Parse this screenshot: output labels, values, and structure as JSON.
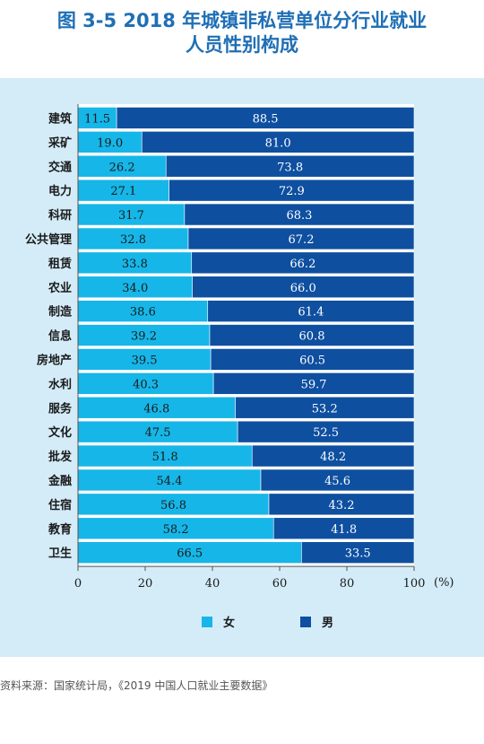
{
  "chart_data": {
    "type": "bar",
    "orientation": "horizontal",
    "stacked": true,
    "title": "图 3-5  2018 年城镇非私营单位分行业就业",
    "subtitle": "人员性别构成",
    "categories": [
      "建筑",
      "采矿",
      "交通",
      "电力",
      "科研",
      "公共管理",
      "租赁",
      "农业",
      "制造",
      "信息",
      "房地产",
      "水利",
      "服务",
      "文化",
      "批发",
      "金融",
      "住宿",
      "教育",
      "卫生"
    ],
    "series": [
      {
        "name": "女",
        "color": "#16b6e8",
        "values": [
          11.5,
          19.0,
          26.2,
          27.1,
          31.7,
          32.8,
          33.8,
          34.0,
          38.6,
          39.2,
          39.5,
          40.3,
          46.8,
          47.5,
          51.8,
          54.4,
          56.8,
          58.2,
          66.5
        ]
      },
      {
        "name": "男",
        "color": "#0e4fa0",
        "values": [
          88.5,
          81.0,
          73.8,
          72.9,
          68.3,
          67.2,
          66.2,
          66.0,
          61.4,
          60.8,
          60.5,
          59.7,
          53.2,
          52.5,
          48.2,
          45.6,
          43.2,
          41.8,
          33.5
        ]
      }
    ],
    "xlim": [
      0,
      100
    ],
    "xticks": [
      0,
      20,
      40,
      60,
      80,
      100
    ],
    "xunit": "(%)",
    "legend_position": "bottom"
  },
  "source": "资料来源：国家统计局，《2019 中国人口就业主要数据》"
}
